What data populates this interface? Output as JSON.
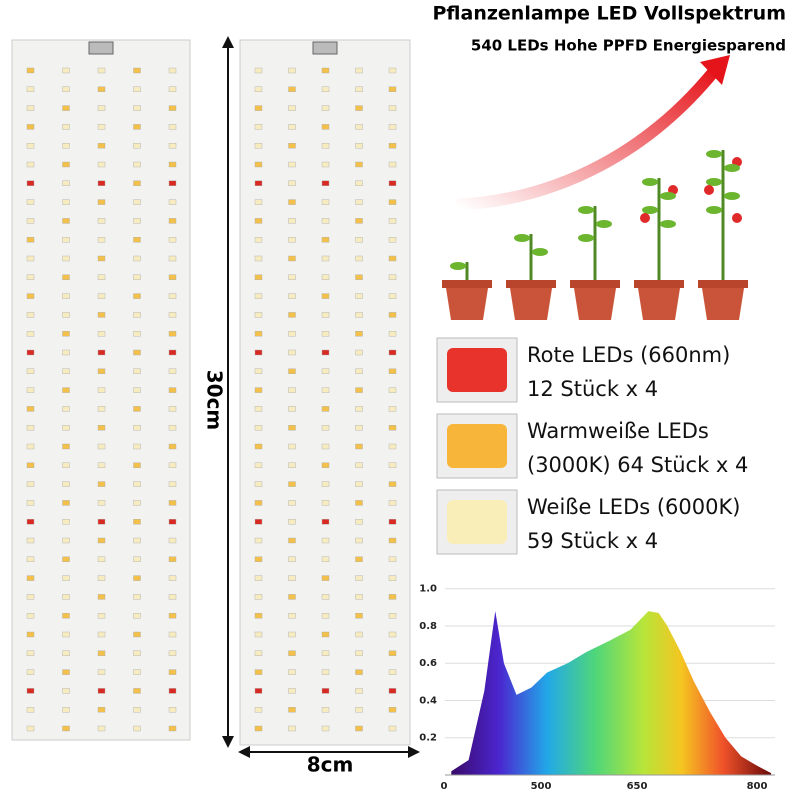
{
  "header": {
    "title": "Pflanzenlampe LED Vollspektrum",
    "subtitle": "540 LEDs Hohe PPFD Energiesparend"
  },
  "dimensions": {
    "height": "30cm",
    "width": "8cm"
  },
  "led_types": [
    {
      "lines": [
        "Rote LEDs (660nm)",
        "12 Stück x 4"
      ],
      "color": "#e8322c"
    },
    {
      "lines": [
        "Warmweiße LEDs",
        "(3000K) 64 Stück x 4"
      ],
      "color": "#f7b53a"
    },
    {
      "lines": [
        "Weiße LEDs (6000K)",
        "59 Stück x 4"
      ],
      "color": "#faeeb8"
    }
  ],
  "chart_data": {
    "type": "area",
    "x_tick_labels": [
      "0",
      "500",
      "650",
      "800"
    ],
    "x": [
      388,
      410,
      430,
      444,
      455,
      471,
      490,
      510,
      536,
      560,
      589,
      616,
      639,
      652,
      663,
      680,
      697,
      717,
      737,
      757,
      777,
      795
    ],
    "values": [
      0.02,
      0.08,
      0.45,
      0.88,
      0.6,
      0.43,
      0.47,
      0.55,
      0.6,
      0.66,
      0.72,
      0.78,
      0.88,
      0.87,
      0.8,
      0.66,
      0.5,
      0.34,
      0.2,
      0.1,
      0.05,
      0.01
    ],
    "xlim": [
      380,
      800
    ],
    "ylim": [
      0,
      1.02
    ],
    "yticks": [
      0.2,
      0.4,
      0.6,
      0.8,
      {
        "value": 1,
        "label": "1.0"
      }
    ],
    "grid": true
  }
}
